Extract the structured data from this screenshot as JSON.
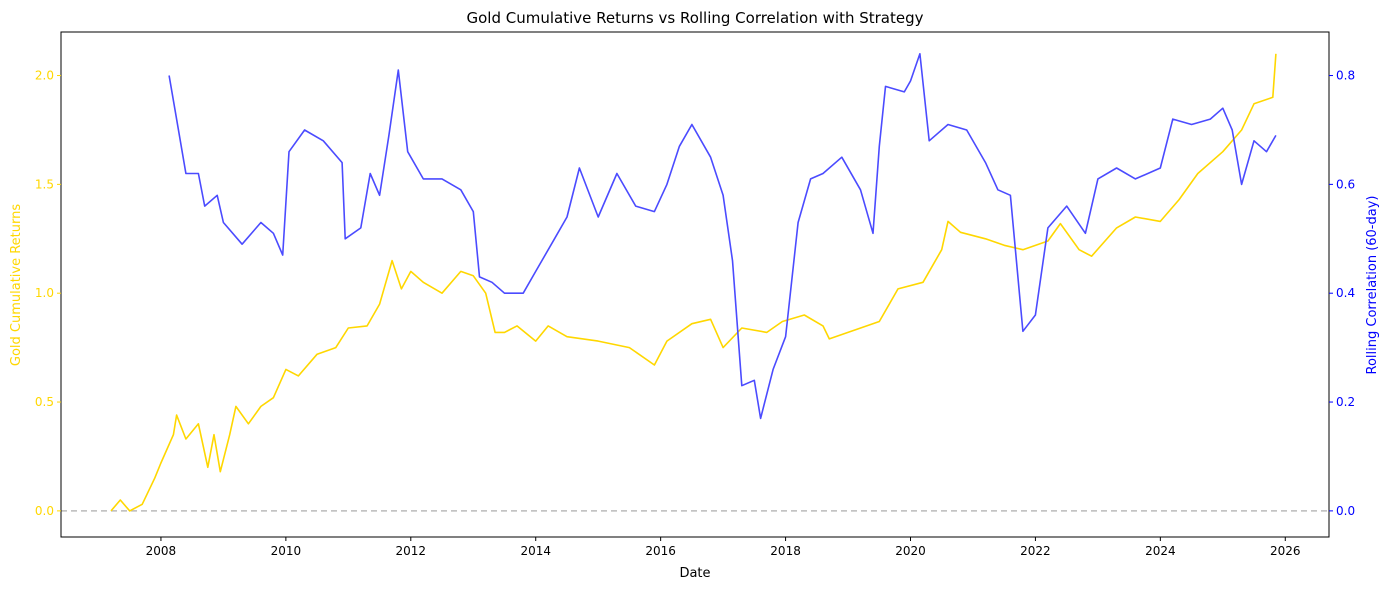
{
  "chart_data": {
    "type": "line",
    "title": "Gold Cumulative Returns vs Rolling Correlation with Strategy",
    "xlabel": "Date",
    "ylabel_left": "Gold Cumulative Returns",
    "ylabel_right": "Rolling Correlation (60-day)",
    "xlim": [
      2006.4,
      2026.7
    ],
    "ylim_left": [
      -0.12,
      2.2
    ],
    "ylim_right": [
      -0.048,
      0.88
    ],
    "x_ticks": [
      2008,
      2010,
      2012,
      2014,
      2016,
      2018,
      2020,
      2022,
      2024,
      2026
    ],
    "y_ticks_left": [
      "0.0",
      "0.5",
      "1.0",
      "1.5",
      "2.0"
    ],
    "y_ticks_right": [
      "0.0",
      "0.2",
      "0.4",
      "0.6",
      "0.8"
    ],
    "grid": false,
    "reference_line": {
      "axis": "left",
      "y": 0,
      "style": "dashed",
      "color": "#999999"
    },
    "colors": {
      "gold": "#FFD700",
      "correlation": "#4B4BFF",
      "left_axis": "#FFD700",
      "right_axis": "#0000FF"
    },
    "series": [
      {
        "axis": "left",
        "color": "#FFD700",
        "x": [
          2007.2,
          2007.35,
          2007.5,
          2007.7,
          2007.9,
          2008.0,
          2008.2,
          2008.25,
          2008.4,
          2008.6,
          2008.75,
          2008.85,
          2008.95,
          2009.1,
          2009.2,
          2009.4,
          2009.6,
          2009.8,
          2010.0,
          2010.2,
          2010.5,
          2010.8,
          2011.0,
          2011.3,
          2011.5,
          2011.7,
          2011.85,
          2012.0,
          2012.2,
          2012.5,
          2012.8,
          2013.0,
          2013.2,
          2013.35,
          2013.5,
          2013.7,
          2014.0,
          2014.2,
          2014.5,
          2015.0,
          2015.5,
          2015.9,
          2016.1,
          2016.5,
          2016.8,
          2017.0,
          2017.3,
          2017.7,
          2017.95,
          2018.3,
          2018.6,
          2018.7,
          2019.0,
          2019.5,
          2019.8,
          2020.2,
          2020.5,
          2020.6,
          2020.8,
          2021.2,
          2021.5,
          2021.8,
          2022.2,
          2022.4,
          2022.7,
          2022.9,
          2023.3,
          2023.6,
          2024.0,
          2024.3,
          2024.6,
          2025.0,
          2025.3,
          2025.5,
          2025.8,
          2025.85
        ],
        "y": [
          0.0,
          0.05,
          0.0,
          0.03,
          0.15,
          0.22,
          0.35,
          0.44,
          0.33,
          0.4,
          0.2,
          0.35,
          0.18,
          0.35,
          0.48,
          0.4,
          0.48,
          0.52,
          0.65,
          0.62,
          0.72,
          0.75,
          0.84,
          0.85,
          0.95,
          1.15,
          1.02,
          1.1,
          1.05,
          1.0,
          1.1,
          1.08,
          1.0,
          0.82,
          0.82,
          0.85,
          0.78,
          0.85,
          0.8,
          0.78,
          0.75,
          0.67,
          0.78,
          0.86,
          0.88,
          0.75,
          0.84,
          0.82,
          0.87,
          0.9,
          0.85,
          0.79,
          0.82,
          0.87,
          1.02,
          1.05,
          1.2,
          1.33,
          1.28,
          1.25,
          1.22,
          1.2,
          1.24,
          1.32,
          1.2,
          1.17,
          1.3,
          1.35,
          1.33,
          1.43,
          1.55,
          1.65,
          1.75,
          1.87,
          1.9,
          2.1
        ]
      },
      {
        "axis": "right",
        "color": "#4B4BFF",
        "x": [
          2008.13,
          2008.25,
          2008.4,
          2008.6,
          2008.7,
          2008.9,
          2009.0,
          2009.3,
          2009.6,
          2009.8,
          2009.95,
          2010.05,
          2010.3,
          2010.6,
          2010.9,
          2010.95,
          2011.2,
          2011.35,
          2011.5,
          2011.65,
          2011.8,
          2011.95,
          2012.2,
          2012.5,
          2012.8,
          2013.0,
          2013.1,
          2013.3,
          2013.5,
          2013.8,
          2014.0,
          2014.3,
          2014.5,
          2014.7,
          2015.0,
          2015.3,
          2015.6,
          2015.9,
          2016.1,
          2016.3,
          2016.5,
          2016.8,
          2017.0,
          2017.15,
          2017.3,
          2017.5,
          2017.6,
          2017.8,
          2018.0,
          2018.2,
          2018.4,
          2018.6,
          2018.9,
          2019.2,
          2019.4,
          2019.5,
          2019.6,
          2019.9,
          2020.0,
          2020.15,
          2020.3,
          2020.6,
          2020.9,
          2021.2,
          2021.4,
          2021.6,
          2021.8,
          2022.0,
          2022.2,
          2022.5,
          2022.8,
          2023.0,
          2023.3,
          2023.6,
          2024.0,
          2024.2,
          2024.5,
          2024.8,
          2025.0,
          2025.15,
          2025.3,
          2025.5,
          2025.7,
          2025.85
        ],
        "y": [
          0.8,
          0.72,
          0.62,
          0.62,
          0.56,
          0.58,
          0.53,
          0.49,
          0.53,
          0.51,
          0.47,
          0.66,
          0.7,
          0.68,
          0.64,
          0.5,
          0.52,
          0.62,
          0.58,
          0.69,
          0.81,
          0.66,
          0.61,
          0.61,
          0.59,
          0.55,
          0.43,
          0.42,
          0.4,
          0.4,
          0.44,
          0.5,
          0.54,
          0.63,
          0.54,
          0.62,
          0.56,
          0.55,
          0.6,
          0.67,
          0.71,
          0.65,
          0.58,
          0.46,
          0.23,
          0.24,
          0.17,
          0.26,
          0.32,
          0.53,
          0.61,
          0.62,
          0.65,
          0.59,
          0.51,
          0.67,
          0.78,
          0.77,
          0.79,
          0.84,
          0.68,
          0.71,
          0.7,
          0.64,
          0.59,
          0.58,
          0.33,
          0.36,
          0.52,
          0.56,
          0.51,
          0.61,
          0.63,
          0.61,
          0.63,
          0.72,
          0.71,
          0.72,
          0.74,
          0.7,
          0.6,
          0.68,
          0.66,
          0.69
        ]
      }
    ]
  }
}
